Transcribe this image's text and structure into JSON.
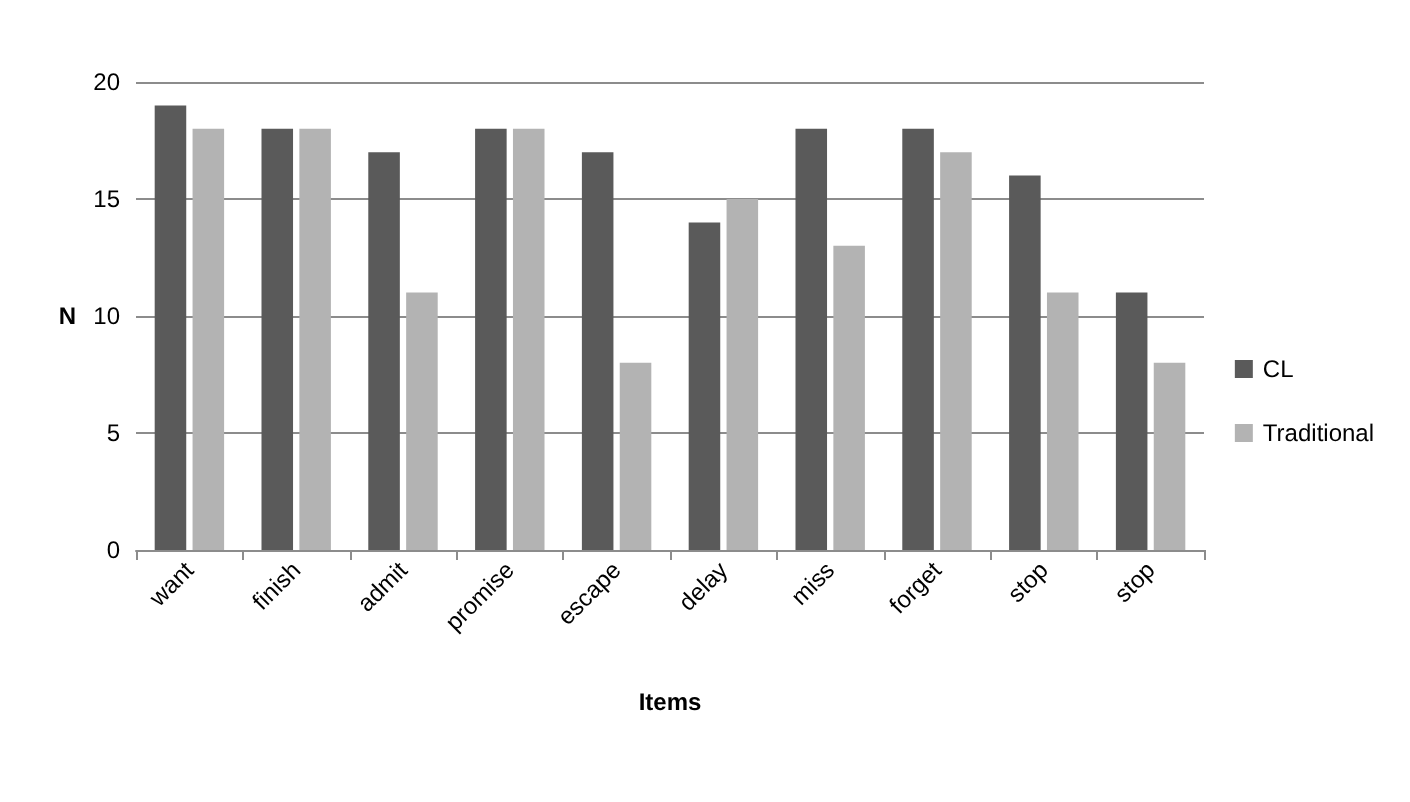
{
  "chart_data": {
    "type": "bar",
    "xlabel": "Items",
    "ylabel": "N",
    "categories": [
      "want",
      "finish",
      "admit",
      "promise",
      "escape",
      "delay",
      "miss",
      "forget",
      "stop",
      "stop"
    ],
    "series": [
      {
        "name": "CL",
        "color": "#5a5a5a",
        "values": [
          19,
          18,
          17,
          18,
          17,
          14,
          18,
          18,
          16,
          11
        ]
      },
      {
        "name": "Traditional",
        "color": "#b3b3b3",
        "values": [
          18,
          18,
          11,
          18,
          8,
          15,
          13,
          17,
          11,
          8
        ]
      }
    ],
    "ylim": [
      0,
      20
    ],
    "yticks": [
      0,
      5,
      10,
      15,
      20
    ],
    "grid": "y",
    "legend": "right"
  }
}
